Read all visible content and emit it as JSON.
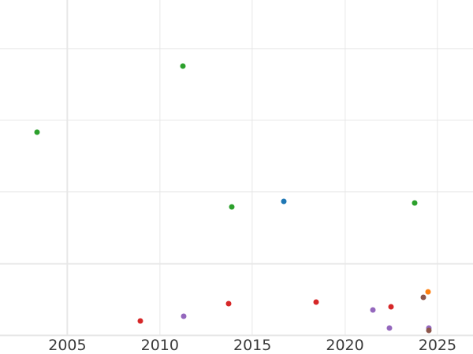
{
  "page": {
    "background_color": "#ffffff"
  },
  "chart_data": {
    "type": "scatter",
    "title": "",
    "xlabel": "",
    "ylabel": "",
    "grid": true,
    "legend": "none",
    "gridline_color": "#e7e7e7",
    "tick_label_color": "#3b3b3b",
    "note": "Chart is cropped: y-axis tick labels are outside the visible image. Y values are expressed in gridline units counted upward from the lowest visible horizontal gridline.",
    "xlim": [
      2001.36,
      2026.92
    ],
    "ylim": [
      -0.26,
      4.68
    ],
    "x_ticks": [
      {
        "value": 2005,
        "label": "2005"
      },
      {
        "value": 2010,
        "label": "2010"
      },
      {
        "value": 2015,
        "label": "2015"
      },
      {
        "value": 2020,
        "label": "2020"
      },
      {
        "value": 2025,
        "label": "2025"
      }
    ],
    "y_ticks": [
      {
        "value": 0,
        "label": ""
      },
      {
        "value": 1,
        "label": ""
      },
      {
        "value": 2,
        "label": ""
      },
      {
        "value": 3,
        "label": ""
      },
      {
        "value": 4,
        "label": ""
      }
    ],
    "y_tick_labels_visible": false,
    "marker_diameter_px": 7,
    "series": [
      {
        "name": "blue",
        "color": "#1f77b4",
        "points": [
          {
            "x": 2016.7,
            "y": 1.87
          }
        ]
      },
      {
        "name": "orange",
        "color": "#ff7f0e",
        "points": [
          {
            "x": 2024.49,
            "y": 0.61
          }
        ]
      },
      {
        "name": "green",
        "color": "#2ca02c",
        "points": [
          {
            "x": 2003.35,
            "y": 2.84
          },
          {
            "x": 2011.25,
            "y": 3.76
          },
          {
            "x": 2013.88,
            "y": 1.79
          },
          {
            "x": 2023.78,
            "y": 1.85
          }
        ]
      },
      {
        "name": "red",
        "color": "#d62728",
        "points": [
          {
            "x": 2008.96,
            "y": 0.2
          },
          {
            "x": 2013.72,
            "y": 0.44
          },
          {
            "x": 2018.43,
            "y": 0.47
          },
          {
            "x": 2022.5,
            "y": 0.4
          }
        ]
      },
      {
        "name": "purple",
        "color": "#9467bd",
        "points": [
          {
            "x": 2011.29,
            "y": 0.27
          },
          {
            "x": 2021.5,
            "y": 0.35
          },
          {
            "x": 2022.4,
            "y": 0.1
          },
          {
            "x": 2024.53,
            "y": 0.1
          }
        ]
      },
      {
        "name": "brown",
        "color": "#8c564b",
        "points": [
          {
            "x": 2024.25,
            "y": 0.53
          },
          {
            "x": 2024.55,
            "y": 0.07
          }
        ]
      }
    ]
  }
}
